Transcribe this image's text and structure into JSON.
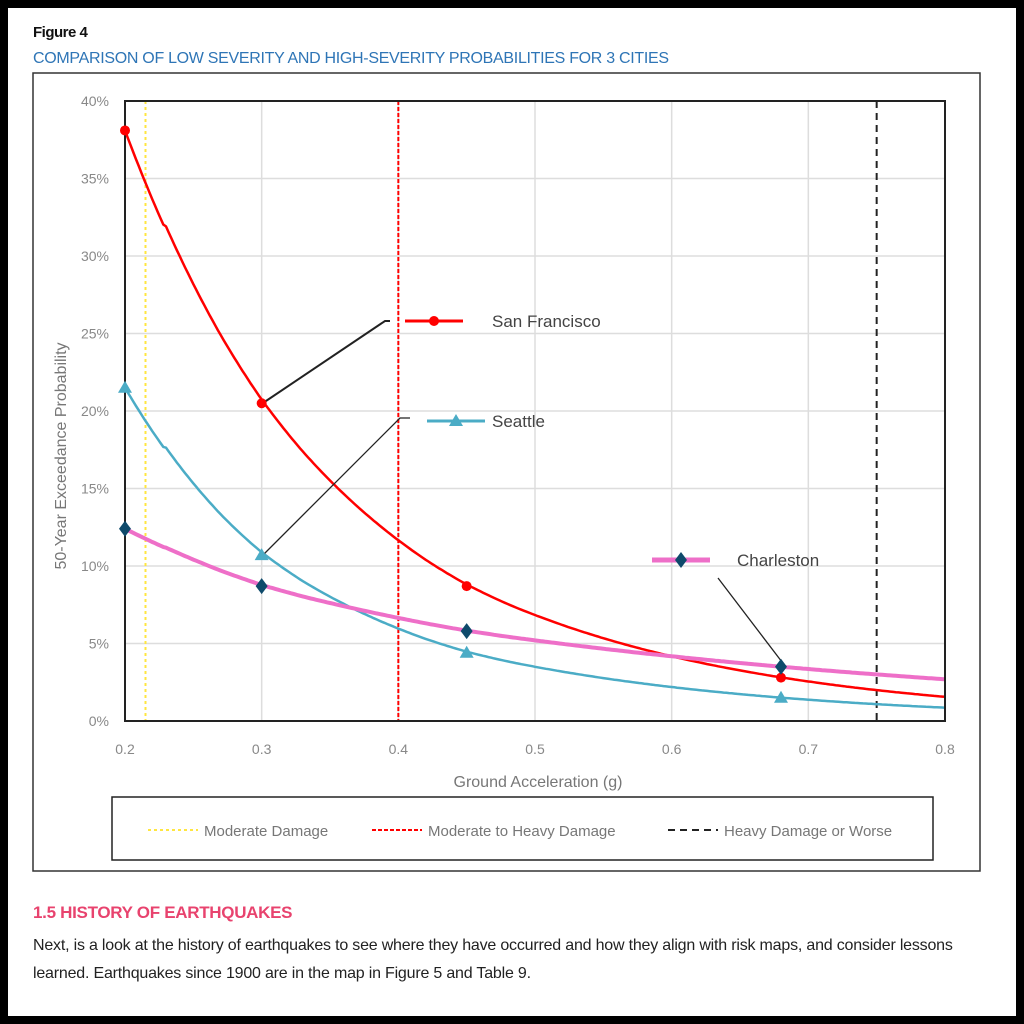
{
  "figure_label": "Figure 4",
  "figure_title": "COMPARISON OF LOW SEVERITY AND HIGH-SEVERITY PROBABILITIES FOR 3 CITIES",
  "section": {
    "heading": "1.5  HISTORY OF EARTHQUAKES",
    "body": "Next, is a look at the history of earthquakes to see where they have occurred and how they align with risk maps, and consider lessons learned. Earthquakes since 1900 are in the map in Figure 5 and Table 9."
  },
  "chart_data": {
    "type": "line",
    "title": "",
    "xlabel": "Ground Acceleration (g)",
    "ylabel": "50-Year Exceedance Probability",
    "xlim": [
      0.2,
      0.8
    ],
    "ylim": [
      0,
      40
    ],
    "x_ticks": [
      "0.2",
      "0.3",
      "0.4",
      "0.5",
      "0.6",
      "0.7",
      "0.8"
    ],
    "y_ticks": [
      "0%",
      "5%",
      "10%",
      "15%",
      "20%",
      "25%",
      "30%",
      "35%",
      "40%"
    ],
    "grid": true,
    "y_unit": "%",
    "series": [
      {
        "name": "San Francisco",
        "color": "#ff0000",
        "marker": "circle",
        "x": [
          0.2,
          0.3,
          0.45,
          0.68
        ],
        "y": [
          38.1,
          20.5,
          8.7,
          2.8
        ]
      },
      {
        "name": "Seattle",
        "color": "#4bacc6",
        "marker": "triangle",
        "x": [
          0.2,
          0.3,
          0.45,
          0.68
        ],
        "y": [
          21.5,
          10.7,
          4.4,
          1.5
        ]
      },
      {
        "name": "Charleston",
        "color": "#ee6fc8",
        "marker_color": "#0e4a6b",
        "marker": "diamond",
        "x": [
          0.2,
          0.3,
          0.45,
          0.68
        ],
        "y": [
          12.4,
          8.7,
          5.8,
          3.5
        ]
      }
    ],
    "reference_lines": [
      {
        "name": "Moderate Damage",
        "x": 0.215,
        "color": "#ffe640",
        "style": "dotted"
      },
      {
        "name": "Moderate to Heavy Damage",
        "x": 0.4,
        "color": "#ff0000",
        "style": "dashed-fine"
      },
      {
        "name": "Heavy Damage or Worse",
        "x": 0.75,
        "color": "#222222",
        "style": "dashed"
      }
    ],
    "legend_placement": "bottom"
  }
}
